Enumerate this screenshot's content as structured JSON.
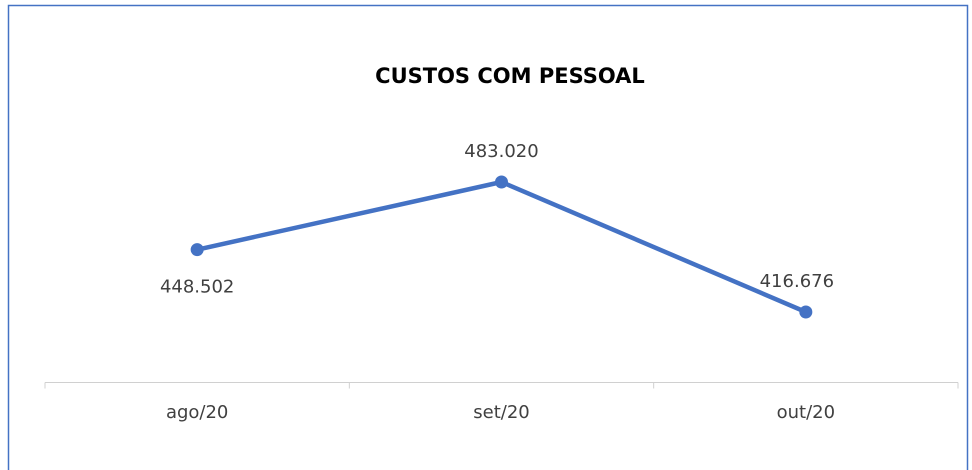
{
  "chart_data": {
    "type": "line",
    "title": "CUSTOS COM PESSOAL",
    "categories": [
      "ago/20",
      "set/20",
      "out/20"
    ],
    "values": [
      448502,
      483020,
      416676
    ],
    "value_labels": [
      "448.502",
      "483.020",
      "416.676"
    ],
    "color": "#4472c4"
  }
}
